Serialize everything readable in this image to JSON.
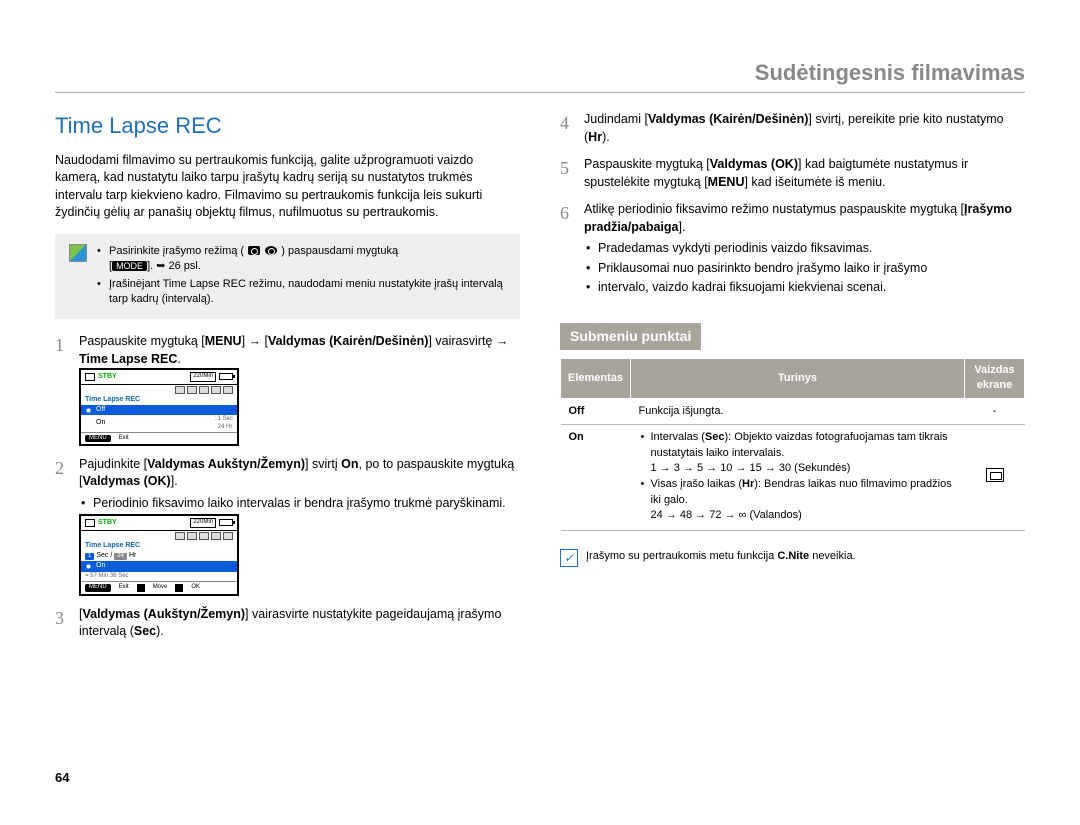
{
  "chapter_title": "Sudėtingesnis filmavimas",
  "section_title": "Time Lapse REC",
  "intro": "Naudodami filmavimo su pertraukomis funkciją, galite užprogramuoti vaizdo kamerą, kad nustatytu laiko tarpu įrašytų kadrų seriją su nustatytos trukmės intervalu tarp kiekvieno kadro. Filmavimo su pertraukomis funkcija leis sukurti žydinčių gėlių ar panašių objektų filmus, nufilmuotus su pertraukomis.",
  "notebox": {
    "line1_a": "Pasirinkite įrašymo režimą (",
    "line1_b": ") paspausdami mygtuką",
    "line2_a": "[",
    "mode_key": "MODE",
    "line2_b": "]. ",
    "page_ref": "➥ 26 psl.",
    "line3": "Įrašinėjant Time Lapse REC režimu, naudodami meniu nustatykite įrašų intervalą tarp kadrų (intervalą)."
  },
  "steps_left": [
    {
      "num": "1",
      "text": "Paspauskite mygtuką [<b>MENU</b>] → [<b>Valdymas (Kairėn/Dešinėn)</b>] vairasvirtę → <b>Time Lapse REC</b>."
    },
    {
      "num": "2",
      "text": "Pajudinkite [<b>Valdymas Aukštyn/Žemyn)</b>] svirtį <b>On</b>, po to paspauskite mygtuką [<b>Valdymas (OK)</b>].",
      "bullets": [
        "Periodinio fiksavimo laiko intervalas ir bendra įrašymo trukmė paryškinami."
      ]
    },
    {
      "num": "3",
      "text": "[<b>Valdymas (Aukštyn/Žemyn)</b>] vairasvirte nustatykite pageidaujamą įrašymo intervalą (<b>Sec</b>)."
    }
  ],
  "steps_right": [
    {
      "num": "4",
      "text": "Judindami [<b>Valdymas (Kairėn/Dešinėn)</b>] svirtį, pereikite prie kito nustatymo (<b>Hr</b>)."
    },
    {
      "num": "5",
      "text": "Paspauskite mygtuką [<b>Valdymas (OK)</b>] kad baigtumėte nustatymus ir spustelėkite mygtuką [<b>MENU</b>] kad išeitumėte iš meniu."
    },
    {
      "num": "6",
      "text": "Atlikę periodinio fiksavimo režimo nustatymus paspauskite mygtuką [<b>Įrašymo pradžia/pabaiga</b>].",
      "bullets": [
        "Pradedamas vykdyti periodinis vaizdo fiksavimas.",
        "Priklausomai nuo pasirinkto bendro įrašymo laiko ir įrašymo",
        "intervalo, vaizdo kadrai fiksuojami kiekvienai scenai."
      ]
    }
  ],
  "lcd1": {
    "stby": "STBY",
    "time": "220Min",
    "title": "Time Lapse REC",
    "off": "Off",
    "on": "On",
    "sub1": "1 Sec",
    "sub2": "24 Hr",
    "menu": "MENU",
    "exit": "Exit"
  },
  "lcd2": {
    "stby": "STBY",
    "time": "220Min",
    "title": "Time Lapse REC",
    "sec": "Sec /",
    "sec_v": "1",
    "hr": "Hr",
    "hr_v": "24",
    "on": "On",
    "eq": "= 57 Min 36 Sec",
    "menu": "MENU",
    "exit": "Exit",
    "move": "Move",
    "ok": "OK"
  },
  "submenu": {
    "heading": "Submeniu punktai",
    "th1": "Elementas",
    "th2": "Turinys",
    "th3": "Vaizdas ekrane",
    "rows": [
      {
        "el": "Off",
        "content_plain": "Funkcija išjungta.",
        "icon": "-"
      },
      {
        "el": "On",
        "content_list": [
          "Intervalas (<b>Sec</b>): Objekto vaizdas fotografuojamas tam tikrais nustatytais laiko intervalais.<br>1 → 3 → 5 → 10 → 15 → 30 (Sekundės)",
          "Visas įrašo laikas (<b>Hr</b>): Bendras laikas nuo filmavimo pradžios iki galo.<br>24 → 48 → 72 → ∞ (Valandos)"
        ],
        "icon": "tl"
      }
    ]
  },
  "footnote": "Įrašymo su pertraukomis metu funkcija <b>C.Nite</b> neveikia.",
  "page_number": "64"
}
